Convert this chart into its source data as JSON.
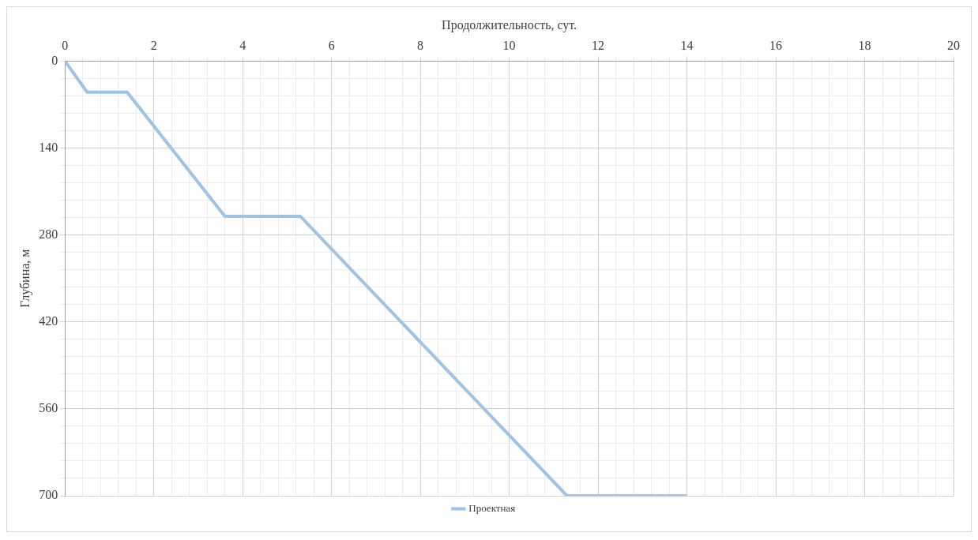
{
  "chart_data": {
    "type": "line",
    "xlabel": "Продолжительность, сут.",
    "ylabel": "Глубина, м",
    "xlim": [
      0,
      20
    ],
    "xticks": [
      0,
      {
        "value": 0.4,
        "label": null
      },
      {
        "value": 0.8,
        "label": null
      },
      {
        "value": 1.2,
        "label": null
      },
      {
        "value": 1.6,
        "label": null
      },
      2,
      {
        "value": 2.4,
        "label": null
      },
      {
        "value": 2.8,
        "label": null
      },
      {
        "value": 3.2,
        "label": null
      },
      {
        "value": 3.6,
        "label": null
      },
      4,
      {
        "value": 4.4,
        "label": null
      },
      {
        "value": 4.8,
        "label": null
      },
      {
        "value": 5.2,
        "label": null
      },
      {
        "value": 5.6,
        "label": null
      },
      6,
      {
        "value": 6.4,
        "label": null
      },
      {
        "value": 6.8,
        "label": null
      },
      {
        "value": 7.2,
        "label": null
      },
      {
        "value": 7.6,
        "label": null
      },
      8,
      {
        "value": 8.4,
        "label": null
      },
      {
        "value": 8.8,
        "label": null
      },
      {
        "value": 9.2,
        "label": null
      },
      {
        "value": 9.6,
        "label": null
      },
      10,
      {
        "value": 10.4,
        "label": null
      },
      {
        "value": 10.8,
        "label": null
      },
      {
        "value": 11.2,
        "label": null
      },
      {
        "value": 11.6,
        "label": null
      },
      12,
      {
        "value": 12.4,
        "label": null
      },
      {
        "value": 12.8,
        "label": null
      },
      {
        "value": 13.2,
        "label": null
      },
      {
        "value": 13.6,
        "label": null
      },
      14,
      {
        "value": 14.4,
        "label": null
      },
      {
        "value": 14.8,
        "label": null
      },
      {
        "value": 15.2,
        "label": null
      },
      {
        "value": 15.6,
        "label": null
      },
      16,
      {
        "value": 16.4,
        "label": null
      },
      {
        "value": 16.8,
        "label": null
      },
      {
        "value": 17.2,
        "label": null
      },
      {
        "value": 17.6,
        "label": null
      },
      18,
      {
        "value": 18.4,
        "label": null
      },
      {
        "value": 18.8,
        "label": null
      },
      {
        "value": 19.2,
        "label": null
      },
      {
        "value": 19.6,
        "label": null
      },
      20
    ],
    "ylim": [
      700,
      0
    ],
    "yticks": [
      0,
      {
        "value": 28,
        "label": null
      },
      {
        "value": 56,
        "label": null
      },
      {
        "value": 84,
        "label": null
      },
      {
        "value": 112,
        "label": null
      },
      140,
      {
        "value": 168,
        "label": null
      },
      {
        "value": 196,
        "label": null
      },
      {
        "value": 224,
        "label": null
      },
      {
        "value": 252,
        "label": null
      },
      280,
      {
        "value": 308,
        "label": null
      },
      {
        "value": 336,
        "label": null
      },
      {
        "value": 364,
        "label": null
      },
      {
        "value": 392,
        "label": null
      },
      420,
      {
        "value": 448,
        "label": null
      },
      {
        "value": 476,
        "label": null
      },
      {
        "value": 504,
        "label": null
      },
      {
        "value": 532,
        "label": null
      },
      560,
      {
        "value": 588,
        "label": null
      },
      {
        "value": 616,
        "label": null
      },
      {
        "value": 644,
        "label": null
      },
      {
        "value": 672,
        "label": null
      },
      700
    ],
    "grid": true,
    "legend": "bottom",
    "series": [
      {
        "name": "Проектная",
        "color": "#9dc3e6",
        "x": [
          0,
          0.5,
          1.4,
          3.6,
          5.3,
          11.3,
          14
        ],
        "values": [
          0,
          50,
          50,
          250,
          250,
          700,
          700
        ]
      }
    ]
  }
}
